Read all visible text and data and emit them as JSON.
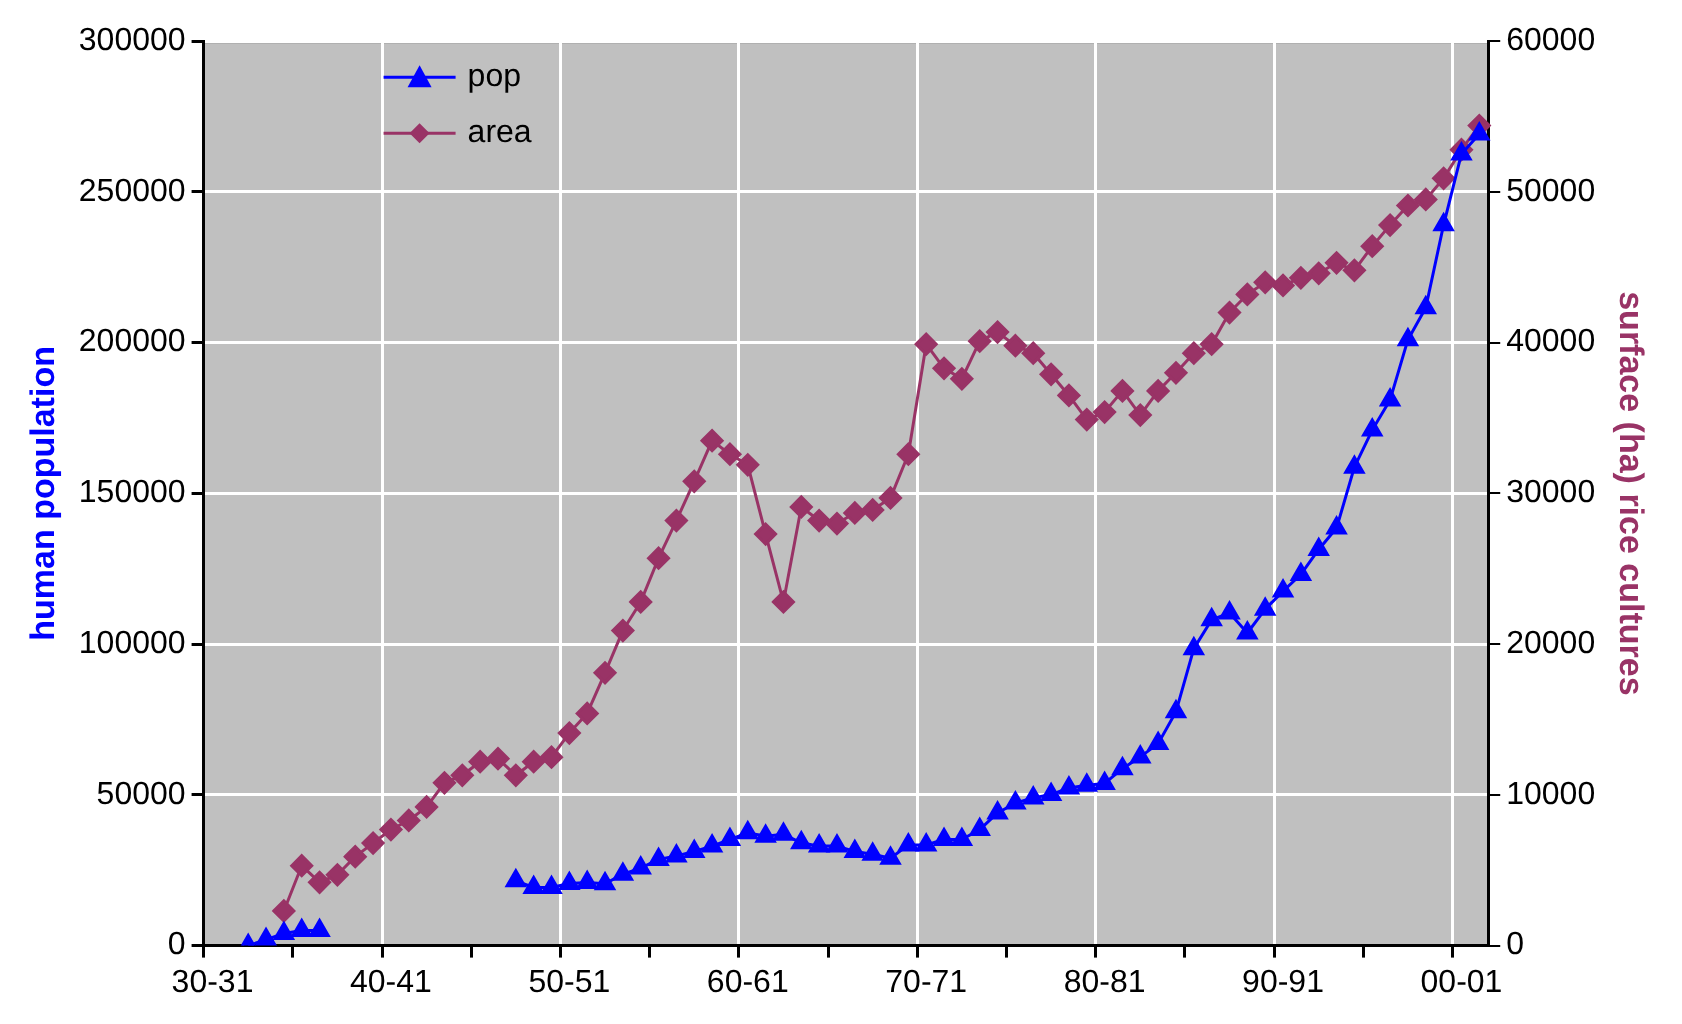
{
  "chart_data": {
    "type": "line",
    "xlabel": null,
    "ylabel": "human population",
    "y2label": "surface (ha) rice cultures",
    "categories": [
      "30-31",
      null,
      null,
      null,
      null,
      null,
      null,
      null,
      null,
      null,
      "40-41",
      null,
      null,
      null,
      null,
      null,
      null,
      null,
      null,
      null,
      "50-51",
      null,
      null,
      null,
      null,
      null,
      null,
      null,
      null,
      null,
      "60-61",
      null,
      null,
      null,
      null,
      null,
      null,
      null,
      null,
      null,
      "70-71",
      null,
      null,
      null,
      null,
      null,
      null,
      null,
      null,
      null,
      "80-81",
      null,
      null,
      null,
      null,
      null,
      null,
      null,
      null,
      null,
      "90-91",
      null,
      null,
      null,
      null,
      null,
      null,
      null,
      null,
      null,
      "00-01",
      null
    ],
    "series": [
      {
        "name": "pop",
        "color": "#0000ff",
        "marker": "triangle",
        "values": [
          null,
          null,
          0,
          2000,
          4000,
          5000,
          5000,
          null,
          null,
          null,
          null,
          null,
          null,
          null,
          null,
          null,
          null,
          21500,
          19300,
          19300,
          20600,
          20900,
          20500,
          23700,
          25700,
          28600,
          29700,
          31200,
          33000,
          35200,
          37400,
          36300,
          36900,
          34100,
          33000,
          33000,
          31200,
          30300,
          29000,
          33400,
          33400,
          35200,
          35200,
          38500,
          44000,
          47300,
          49000,
          50100,
          52300,
          53200,
          53800,
          58700,
          62600,
          67000,
          77600,
          98500,
          108100,
          110300,
          103700,
          111600,
          117600,
          123100,
          131400,
          138500,
          158700,
          171000,
          181000,
          201000,
          211600,
          239100,
          262600,
          269200
        ]
      },
      {
        "name": "area",
        "color": "#993366",
        "marker": "diamond",
        "axis": "y2",
        "values": [
          null,
          null,
          null,
          null,
          2300,
          5300,
          4200,
          4700,
          5900,
          6800,
          7700,
          8300,
          9200,
          10800,
          11300,
          12200,
          12400,
          11300,
          12200,
          12500,
          14100,
          15400,
          18100,
          20900,
          22800,
          25700,
          28200,
          30800,
          33500,
          32600,
          31900,
          27300,
          22800,
          29100,
          28200,
          28000,
          28700,
          28900,
          29700,
          32600,
          39900,
          38300,
          37600,
          40100,
          40700,
          39800,
          39300,
          37900,
          36500,
          34900,
          35400,
          36800,
          35200,
          36800,
          38000,
          39300,
          39900,
          42000,
          43200,
          44000,
          43800,
          44300,
          44600,
          45300,
          44800,
          46400,
          47800,
          49100,
          49500,
          50900,
          52800,
          54400
        ]
      }
    ],
    "ylim": [
      0,
      300000
    ],
    "yticks": [
      0,
      50000,
      100000,
      150000,
      200000,
      250000,
      300000
    ],
    "y2lim": [
      0,
      60000
    ],
    "y2ticks": [
      0,
      10000,
      20000,
      30000,
      40000,
      50000,
      60000
    ],
    "grid": true,
    "legend": "top left"
  }
}
